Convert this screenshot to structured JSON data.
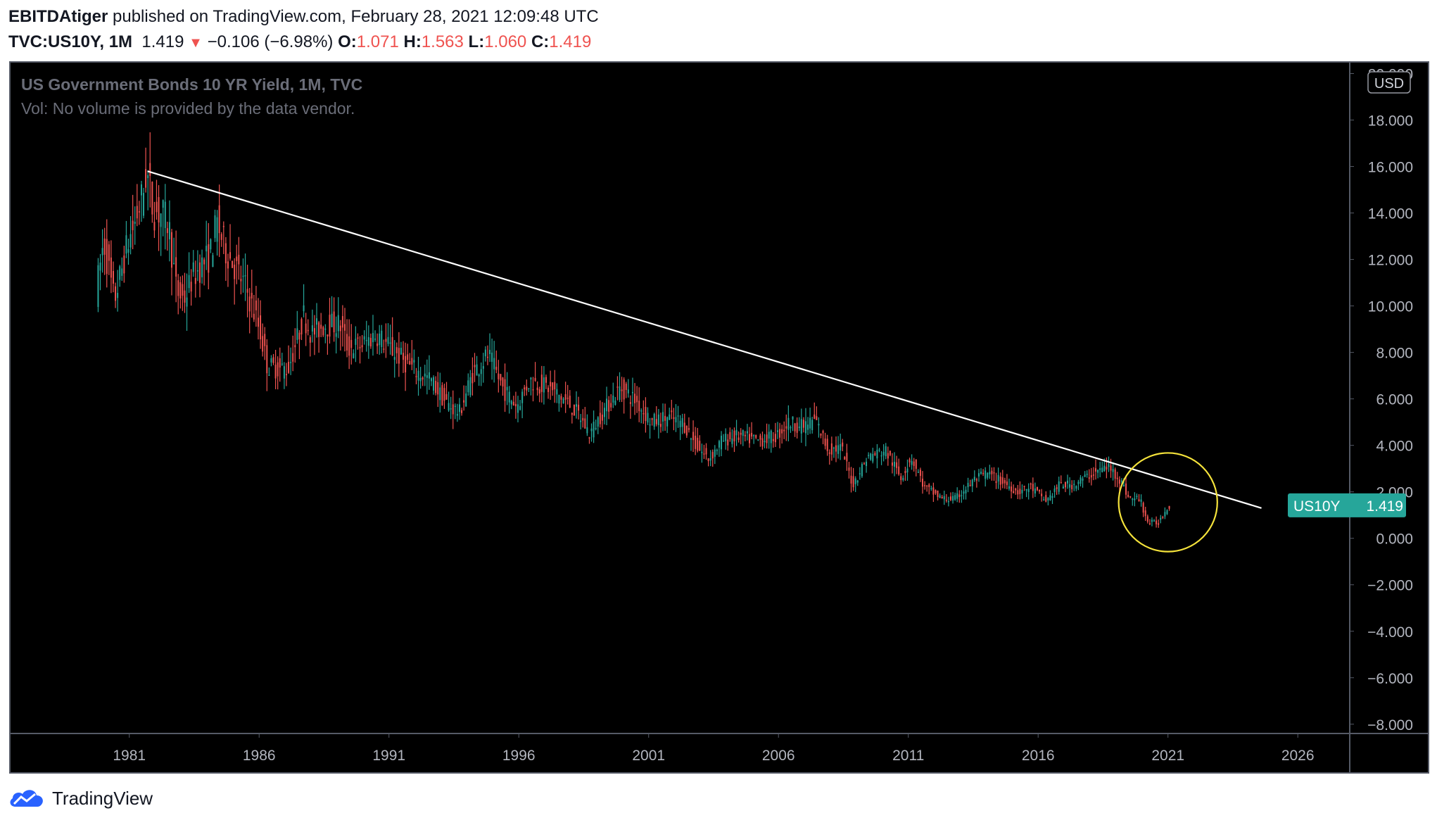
{
  "header": {
    "author": "EBITDAtiger",
    "published_text": "published on TradingView.com, February 28, 2021 12:09:48 UTC",
    "symbol": "TVC:US10Y, 1M",
    "last": "1.419",
    "change": "−0.106 (−6.98%)",
    "o_label": "O:",
    "o_value": "1.071",
    "h_label": "H:",
    "h_value": "1.563",
    "l_label": "L:",
    "l_value": "1.060",
    "c_label": "C:",
    "c_value": "1.419"
  },
  "legend": {
    "title": "US Government Bonds 10 YR Yield, 1M, TVC",
    "volume_note": "Vol: No volume is provided by the data vendor."
  },
  "currency": "USD",
  "price_tag": {
    "symbol": "US10Y",
    "value": "1.419"
  },
  "footer": {
    "brand": "TradingView"
  },
  "colors": {
    "background": "#000000",
    "up": "#26a69a",
    "down": "#ef5350",
    "trendline": "#ffffff",
    "circle": "#f5e33b",
    "axis_text": "#b2b5be"
  },
  "chart_data": {
    "type": "candlestick",
    "interval": "1M",
    "y_ticks": [
      "20.000",
      "18.000",
      "16.000",
      "14.000",
      "12.000",
      "10.000",
      "8.000",
      "6.000",
      "4.000",
      "2.000",
      "0.000",
      "−2.000",
      "−4.000",
      "−6.000",
      "−8.000"
    ],
    "x_ticks": [
      "1981",
      "1986",
      "1991",
      "1996",
      "2001",
      "2006",
      "2011",
      "2016",
      "2021",
      "2026"
    ],
    "ylim": [
      -8.4,
      20.5
    ],
    "xlim": [
      1976.4,
      2028.0
    ],
    "trendline": {
      "start": [
        1981.7,
        15.8
      ],
      "end": [
        2024.6,
        1.3
      ]
    },
    "highlight_circle": {
      "center": [
        2021.0,
        1.55
      ],
      "radius_years": 1.9
    },
    "anchors": [
      [
        1979.8,
        10.6
      ],
      [
        1980.1,
        12.8
      ],
      [
        1980.5,
        10.2
      ],
      [
        1980.8,
        11.6
      ],
      [
        1981.0,
        12.6
      ],
      [
        1981.3,
        13.6
      ],
      [
        1981.6,
        14.8
      ],
      [
        1981.75,
        15.8
      ],
      [
        1982.0,
        14.1
      ],
      [
        1982.3,
        14.0
      ],
      [
        1982.6,
        13.5
      ],
      [
        1982.9,
        10.6
      ],
      [
        1983.2,
        10.3
      ],
      [
        1983.5,
        11.2
      ],
      [
        1983.9,
        11.8
      ],
      [
        1984.2,
        12.2
      ],
      [
        1984.45,
        13.6
      ],
      [
        1984.8,
        12.4
      ],
      [
        1985.2,
        11.6
      ],
      [
        1985.6,
        10.7
      ],
      [
        1986.1,
        9.0
      ],
      [
        1986.4,
        7.4
      ],
      [
        1986.9,
        7.3
      ],
      [
        1987.2,
        7.3
      ],
      [
        1987.6,
        8.8
      ],
      [
        1987.8,
        9.6
      ],
      [
        1988.1,
        8.8
      ],
      [
        1988.6,
        9.2
      ],
      [
        1989.2,
        9.2
      ],
      [
        1989.5,
        8.2
      ],
      [
        1990.0,
        8.3
      ],
      [
        1990.6,
        8.8
      ],
      [
        1991.2,
        8.1
      ],
      [
        1992.0,
        7.3
      ],
      [
        1992.7,
        6.8
      ],
      [
        1993.3,
        5.8
      ],
      [
        1993.8,
        5.4
      ],
      [
        1994.3,
        7.1
      ],
      [
        1994.9,
        7.9
      ],
      [
        1995.5,
        6.4
      ],
      [
        1996.0,
        5.7
      ],
      [
        1996.5,
        6.8
      ],
      [
        1997.2,
        6.5
      ],
      [
        1997.9,
        5.9
      ],
      [
        1998.4,
        5.3
      ],
      [
        1998.8,
        4.5
      ],
      [
        1999.3,
        5.4
      ],
      [
        2000.0,
        6.5
      ],
      [
        2000.6,
        5.9
      ],
      [
        2001.2,
        5.0
      ],
      [
        2001.8,
        5.2
      ],
      [
        2002.4,
        5.0
      ],
      [
        2002.9,
        4.0
      ],
      [
        2003.4,
        3.4
      ],
      [
        2003.9,
        4.2
      ],
      [
        2004.5,
        4.4
      ],
      [
        2005.3,
        4.2
      ],
      [
        2006.0,
        4.4
      ],
      [
        2006.5,
        5.0
      ],
      [
        2007.0,
        4.8
      ],
      [
        2007.5,
        5.1
      ],
      [
        2008.0,
        3.8
      ],
      [
        2008.5,
        3.9
      ],
      [
        2008.95,
        2.3
      ],
      [
        2009.5,
        3.5
      ],
      [
        2010.2,
        3.8
      ],
      [
        2010.8,
        2.6
      ],
      [
        2011.2,
        3.5
      ],
      [
        2011.7,
        2.2
      ],
      [
        2012.4,
        1.7
      ],
      [
        2012.9,
        1.7
      ],
      [
        2013.6,
        2.5
      ],
      [
        2014.1,
        2.8
      ],
      [
        2014.9,
        2.3
      ],
      [
        2015.3,
        2.0
      ],
      [
        2015.8,
        2.2
      ],
      [
        2016.4,
        1.6
      ],
      [
        2016.9,
        2.3
      ],
      [
        2017.4,
        2.3
      ],
      [
        2018.2,
        2.8
      ],
      [
        2018.75,
        3.1
      ],
      [
        2019.2,
        2.6
      ],
      [
        2019.6,
        1.7
      ],
      [
        2020.0,
        1.7
      ],
      [
        2020.3,
        0.7
      ],
      [
        2020.7,
        0.65
      ],
      [
        2021.1,
        1.41
      ]
    ]
  }
}
